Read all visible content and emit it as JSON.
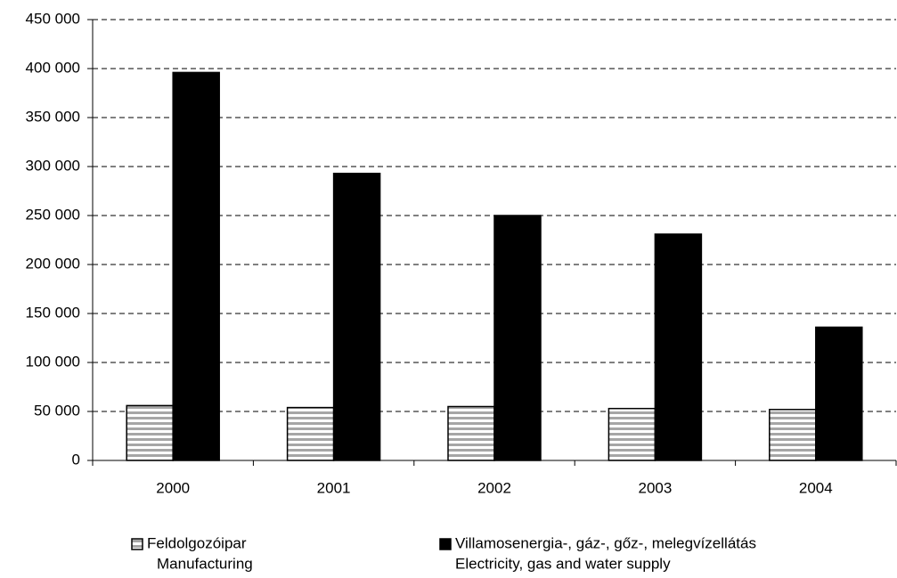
{
  "chart_data": {
    "type": "bar",
    "categories": [
      "2000",
      "2001",
      "2002",
      "2003",
      "2004"
    ],
    "series": [
      {
        "name": "Feldolgozóipar",
        "name_en": "Manufacturing",
        "color": "#a6a6a6",
        "pattern": "horizontal-stripes",
        "values": [
          56000,
          54000,
          55000,
          53000,
          52000
        ]
      },
      {
        "name": "Villamosenergia-, gáz-, gőz-, melegvízellátás",
        "name_en": "Electricity, gas and water supply",
        "color": "#000000",
        "values": [
          396000,
          293000,
          250000,
          231000,
          136000
        ]
      }
    ],
    "ylim": [
      0,
      450000
    ],
    "yticks": [
      0,
      {
        "value": 50000,
        "label": "50 000"
      },
      {
        "value": 100000,
        "label": "100 000"
      },
      {
        "value": 150000,
        "label": "150 000"
      },
      {
        "value": 200000,
        "label": "200 000"
      },
      {
        "value": 250000,
        "label": "250 000"
      },
      {
        "value": 300000,
        "label": "300 000"
      },
      {
        "value": 350000,
        "label": "350 000"
      },
      {
        "value": 400000,
        "label": "400 000"
      },
      {
        "value": 450000,
        "label": "450 000"
      }
    ],
    "grid": true,
    "legend": "bottom"
  }
}
